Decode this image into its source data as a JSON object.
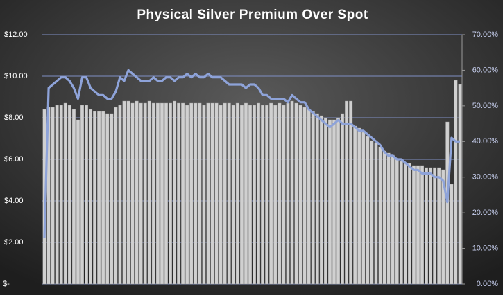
{
  "chart_data": {
    "type": "bar-line",
    "title": "Physical Silver Premium Over Spot",
    "ylim": [
      0,
      12
    ],
    "yticks": [
      {
        "value": 0,
        "label": "$-"
      },
      {
        "value": 2,
        "label": "$2.00"
      },
      {
        "value": 4,
        "label": "$4.00"
      },
      {
        "value": 6,
        "label": "$6.00"
      },
      {
        "value": 8,
        "label": "$8.00"
      },
      {
        "value": 10,
        "label": "$10.00"
      },
      {
        "value": 12,
        "label": "$12.00"
      }
    ],
    "y2lim": [
      0,
      70
    ],
    "y2ticks": [
      {
        "value": 0,
        "label": "0.00%"
      },
      {
        "value": 10,
        "label": "10.00%"
      },
      {
        "value": 20,
        "label": "20.00%"
      },
      {
        "value": 30,
        "label": "30.00%"
      },
      {
        "value": 40,
        "label": "40.00%"
      },
      {
        "value": 50,
        "label": "50.00%"
      },
      {
        "value": 60,
        "label": "60.00%"
      },
      {
        "value": 70,
        "label": "70.00%"
      }
    ],
    "grid": true,
    "series": [
      {
        "kind": "bar",
        "color": "#d0d0d0",
        "values": [
          8.4,
          8.5,
          8.5,
          8.6,
          8.6,
          8.7,
          8.6,
          8.4,
          7.9,
          8.6,
          8.6,
          8.4,
          8.3,
          8.3,
          8.3,
          8.2,
          8.2,
          8.5,
          8.6,
          8.8,
          8.8,
          8.7,
          8.8,
          8.7,
          8.7,
          8.8,
          8.7,
          8.7,
          8.7,
          8.7,
          8.7,
          8.8,
          8.7,
          8.7,
          8.6,
          8.7,
          8.7,
          8.7,
          8.6,
          8.7,
          8.7,
          8.7,
          8.6,
          8.7,
          8.7,
          8.6,
          8.7,
          8.6,
          8.7,
          8.6,
          8.6,
          8.7,
          8.6,
          8.6,
          8.7,
          8.6,
          8.7,
          8.6,
          8.7,
          8.8,
          8.7,
          8.6,
          8.5,
          8.4,
          8.3,
          8.2,
          8.1,
          8.0,
          7.9,
          7.9,
          8.0,
          8.2,
          8.8,
          8.8,
          7.6,
          7.5,
          7.3,
          7.1,
          6.9,
          6.8,
          6.6,
          6.4,
          6.3,
          6.2,
          6.0,
          5.9,
          5.8,
          5.8,
          5.7,
          5.7,
          5.7,
          5.6,
          5.6,
          5.6,
          5.6,
          5.5,
          7.8,
          4.8,
          9.8,
          9.6
        ]
      },
      {
        "kind": "line",
        "axis": "y2",
        "color": "#8ea3d9",
        "values": [
          13,
          55,
          56,
          57,
          58,
          58,
          57,
          55,
          52,
          58,
          58,
          55,
          54,
          53,
          53,
          52,
          52,
          54,
          58,
          57,
          60,
          59,
          58,
          57,
          57,
          57,
          58,
          57,
          57,
          58,
          58,
          57,
          58,
          58,
          59,
          58,
          59,
          58,
          58,
          59,
          58,
          58,
          58,
          57,
          56,
          56,
          56,
          56,
          55,
          56,
          56,
          55,
          53,
          53,
          52,
          52,
          52,
          52,
          51,
          53,
          52,
          51,
          51,
          49,
          48,
          47,
          46,
          45,
          44,
          45,
          46,
          45,
          45,
          45,
          44,
          43,
          43,
          42,
          41,
          40,
          39,
          37,
          36,
          36,
          35,
          35,
          34,
          33,
          32,
          32,
          31,
          31,
          31,
          30,
          30,
          29,
          23,
          41,
          40,
          40
        ]
      }
    ]
  }
}
